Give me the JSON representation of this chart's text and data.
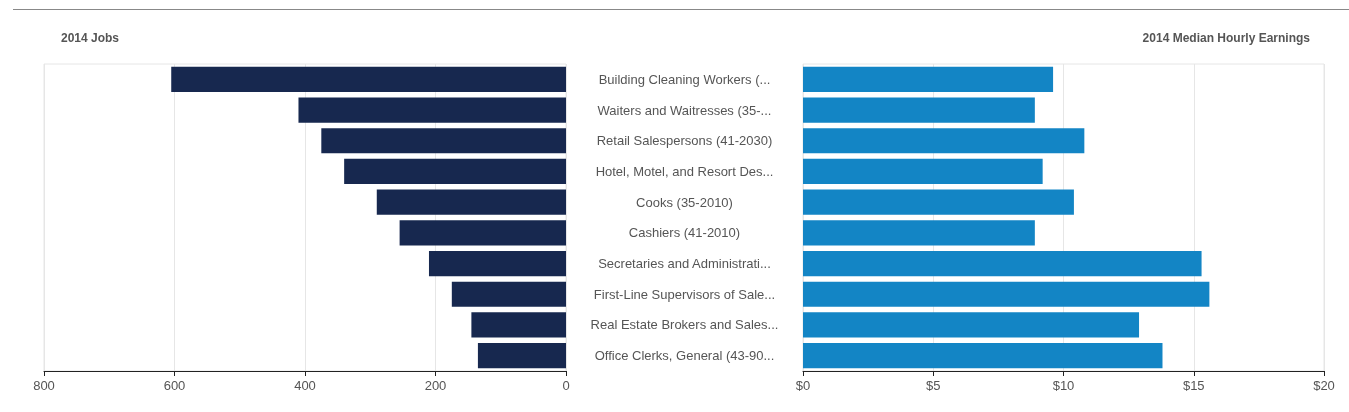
{
  "chart_data": [
    {
      "type": "bar",
      "title": "2014 Jobs",
      "orientation": "horizontal",
      "categories": [
        "Building Cleaning Workers (...",
        "Waiters and Waitresses (35-...",
        "Retail Salespersons (41-2030)",
        "Hotel, Motel, and Resort Des...",
        "Cooks (35-2010)",
        "Cashiers (41-2010)",
        "Secretaries and Administrati...",
        "First-Line Supervisors of Sale...",
        "Real Estate Brokers and Sales...",
        "Office Clerks, General (43-90..."
      ],
      "values": [
        605,
        410,
        375,
        340,
        290,
        255,
        210,
        175,
        145,
        135
      ],
      "color": "#17284f",
      "xlim": [
        800,
        0
      ],
      "xticks": [
        800,
        600,
        400,
        200,
        0
      ],
      "grid": "x"
    },
    {
      "type": "bar",
      "title": "2014 Median Hourly Earnings",
      "orientation": "horizontal",
      "categories": [
        "Building Cleaning Workers (...",
        "Waiters and Waitresses (35-...",
        "Retail Salespersons (41-2030)",
        "Hotel, Motel, and Resort Des...",
        "Cooks (35-2010)",
        "Cashiers (41-2010)",
        "Secretaries and Administrati...",
        "First-Line Supervisors of Sale...",
        "Real Estate Brokers and Sales...",
        "Office Clerks, General (43-90..."
      ],
      "values": [
        9.6,
        8.9,
        10.8,
        9.2,
        10.4,
        8.9,
        15.3,
        15.6,
        12.9,
        13.8
      ],
      "color": "#1385c5",
      "xlim": [
        0,
        20
      ],
      "xticks": [
        {
          "value": 0,
          "label": "$0"
        },
        {
          "value": 5,
          "label": "$5"
        },
        {
          "value": 10,
          "label": "$10"
        },
        {
          "value": 15,
          "label": "$15"
        },
        {
          "value": 20,
          "label": "$20"
        }
      ],
      "grid": "x",
      "tick_labels": "x"
    }
  ]
}
